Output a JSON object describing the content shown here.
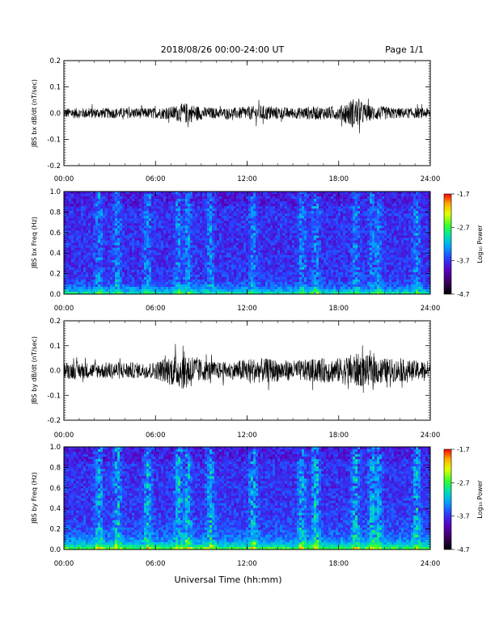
{
  "header": {
    "title": "2018/08/26  00:00-24:00 UT",
    "page": "Page 1/1"
  },
  "footer": {
    "xlabel": "Universal Time (hh:mm)"
  },
  "colors": {
    "trace": "#000000",
    "axes": "#000000",
    "background": "#ffffff",
    "colormap": [
      "#000000",
      "#3a0060",
      "#5a00c0",
      "#2a40ff",
      "#00a8ff",
      "#00e0b0",
      "#30ff30",
      "#e0ff00",
      "#ffb000",
      "#ff0000"
    ]
  },
  "chart_data": [
    {
      "type": "line",
      "panel": 1,
      "ylabel": "JBS bx dB/dt (nT/sec)",
      "ylim": [
        -0.2,
        0.2
      ],
      "yticks": [
        "0.2",
        "0.1",
        "0.0",
        "-0.1",
        "-0.2"
      ],
      "xticks": [
        "00:00",
        "06:00",
        "12:00",
        "18:00",
        "24:00"
      ],
      "xlim_hours": [
        0,
        24
      ],
      "series": [
        {
          "x_hours": [
            0,
            1,
            2,
            3,
            4,
            5,
            6,
            7,
            8,
            9,
            10,
            11,
            12,
            13,
            14,
            15,
            16,
            17,
            18,
            19,
            20,
            21,
            22,
            23,
            24
          ],
          "amplitude": [
            0.02,
            0.02,
            0.02,
            0.02,
            0.02,
            0.02,
            0.02,
            0.025,
            0.04,
            0.025,
            0.02,
            0.02,
            0.025,
            0.03,
            0.025,
            0.02,
            0.025,
            0.025,
            0.025,
            0.06,
            0.03,
            0.025,
            0.02,
            0.02,
            0.02
          ]
        }
      ]
    },
    {
      "type": "heatmap",
      "panel": 2,
      "ylabel": "JBS bx Freq (Hz)",
      "ylim": [
        0.0,
        1.0
      ],
      "yticks": [
        "1.0",
        "0.8",
        "0.6",
        "0.4",
        "0.2",
        "0.0"
      ],
      "xticks": [
        "00:00",
        "06:00",
        "12:00",
        "18:00",
        "24:00"
      ],
      "colorbar": {
        "label": "Log₁₀ Power",
        "ticks": [
          "-1.7",
          "-2.7",
          "-3.7",
          "-4.7"
        ],
        "range": [
          -4.7,
          -1.7
        ]
      },
      "bright_bands_hours": [
        2.3,
        3.5,
        5.5,
        7.5,
        8.1,
        9.6,
        12.4,
        15.6,
        16.5,
        19.1,
        20.2,
        20.6,
        23.1
      ]
    },
    {
      "type": "line",
      "panel": 3,
      "ylabel": "JBS by dB/dt (nT/sec)",
      "ylim": [
        -0.2,
        0.2
      ],
      "yticks": [
        "0.2",
        "0.1",
        "0.0",
        "-0.1",
        "-0.2"
      ],
      "xticks": [
        "00:00",
        "06:00",
        "12:00",
        "18:00",
        "24:00"
      ],
      "xlim_hours": [
        0,
        24
      ],
      "series": [
        {
          "x_hours": [
            0,
            1,
            2,
            3,
            4,
            5,
            6,
            7,
            8,
            9,
            10,
            11,
            12,
            13,
            14,
            15,
            16,
            17,
            18,
            19,
            20,
            21,
            22,
            23,
            24
          ],
          "amplitude": [
            0.035,
            0.035,
            0.03,
            0.035,
            0.035,
            0.03,
            0.035,
            0.06,
            0.08,
            0.045,
            0.035,
            0.035,
            0.05,
            0.05,
            0.045,
            0.04,
            0.045,
            0.05,
            0.05,
            0.07,
            0.06,
            0.05,
            0.045,
            0.04,
            0.04
          ]
        }
      ]
    },
    {
      "type": "heatmap",
      "panel": 4,
      "ylabel": "JBS by Freq (Hz)",
      "ylim": [
        0.0,
        1.0
      ],
      "yticks": [
        "1.0",
        "0.8",
        "0.6",
        "0.4",
        "0.2",
        "0.0"
      ],
      "xticks": [
        "00:00",
        "06:00",
        "12:00",
        "18:00",
        "24:00"
      ],
      "colorbar": {
        "label": "Log₁₀ Power",
        "ticks": [
          "-1.7",
          "-2.7",
          "-3.7",
          "-4.7"
        ],
        "range": [
          -4.7,
          -1.7
        ]
      },
      "bright_bands_hours": [
        2.3,
        3.5,
        5.5,
        7.5,
        8.1,
        9.6,
        12.4,
        15.6,
        16.5,
        19.1,
        20.2,
        20.6,
        23.1
      ]
    }
  ]
}
